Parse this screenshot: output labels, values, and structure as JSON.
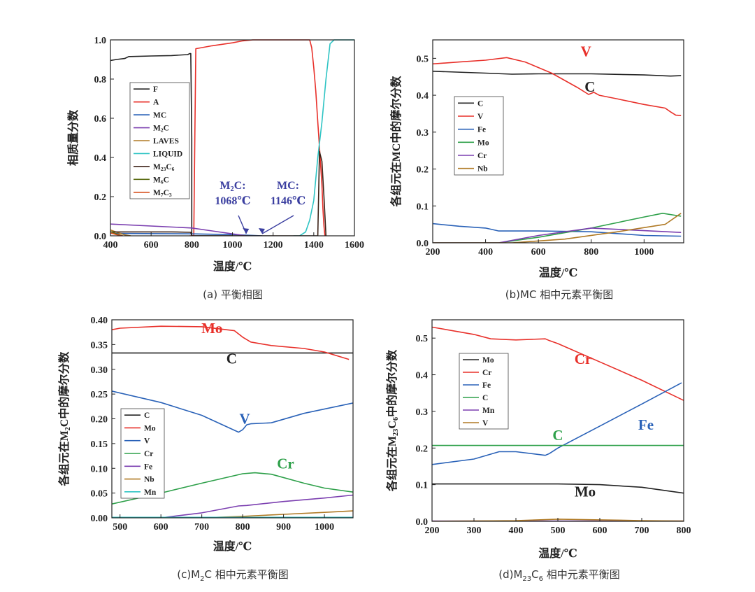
{
  "chart_data": [
    {
      "type": "line",
      "caption": "(a) 平衡相图",
      "xlabel": "温度/℃",
      "ylabel": "相质量分数",
      "xlim": [
        400,
        1600
      ],
      "ylim": [
        0,
        1.0
      ],
      "xticks": [
        400,
        600,
        800,
        1000,
        1200,
        1400,
        1600
      ],
      "yticks": [
        0.0,
        0.2,
        0.4,
        0.6,
        0.8,
        1.0
      ],
      "xtick_labels": [
        "400",
        "600",
        "800",
        "1000",
        "1200",
        "1400",
        "1600"
      ],
      "ytick_labels": [
        "0.0",
        "0.2",
        "0.4",
        "0.6",
        "0.8",
        "1.0"
      ],
      "legend_placement": "center-left",
      "series": [
        {
          "name": "F",
          "color": "#222222",
          "x": [
            400,
            430,
            470,
            490,
            500,
            600,
            700,
            780,
            790,
            795,
            800,
            800,
            900,
            1000
          ],
          "y": [
            0.895,
            0.9,
            0.905,
            0.915,
            0.915,
            0.918,
            0.92,
            0.925,
            0.93,
            0.93,
            0.5,
            0.0,
            0.0,
            0.0
          ]
        },
        {
          "name": "A",
          "color": "#e8302a",
          "x": [
            790,
            810,
            815,
            820,
            900,
            1000,
            1050,
            1100,
            1200,
            1300,
            1380,
            1390,
            1400,
            1410,
            1420,
            1430,
            1440,
            1445,
            1450,
            1455
          ],
          "y": [
            0.0,
            0.0,
            0.5,
            0.955,
            0.97,
            0.985,
            0.995,
            1.0,
            1.0,
            1.0,
            1.0,
            0.96,
            0.86,
            0.74,
            0.58,
            0.42,
            0.26,
            0.14,
            0.05,
            0.0
          ]
        },
        {
          "name": "MC",
          "color": "#2a62b8",
          "x": [
            400,
            800,
            1000,
            1100,
            1146
          ],
          "y": [
            0.012,
            0.01,
            0.006,
            0.002,
            0.0
          ]
        },
        {
          "name": "M₂C",
          "color": "#7b3fb0",
          "x": [
            400,
            800,
            900,
            1000,
            1068
          ],
          "y": [
            0.06,
            0.04,
            0.025,
            0.01,
            0.0
          ]
        },
        {
          "name": "LAVES",
          "color": "#b07a25",
          "x": [
            400,
            440,
            470,
            500
          ],
          "y": [
            0.03,
            0.015,
            0.005,
            0.0
          ]
        },
        {
          "name": "LIQUID",
          "color": "#2ec4c4",
          "x": [
            1300,
            1330,
            1360,
            1380,
            1400,
            1420,
            1440,
            1460,
            1480,
            1500,
            1600
          ],
          "y": [
            0.0,
            0.0,
            0.02,
            0.08,
            0.18,
            0.4,
            0.58,
            0.8,
            0.98,
            1.0,
            1.0
          ]
        },
        {
          "name": "M₂₃C₆",
          "color": "#3d2318",
          "x": [
            400,
            500,
            700,
            795,
            800,
            1420,
            1428,
            1440,
            1450,
            1460
          ],
          "y": [
            0.02,
            0.02,
            0.02,
            0.018,
            0.0,
            0.0,
            0.43,
            0.38,
            0.2,
            0.0
          ]
        },
        {
          "name": "M₆C",
          "color": "#5a6b12",
          "x": [
            400,
            430,
            460
          ],
          "y": [
            0.022,
            0.01,
            0.0
          ]
        },
        {
          "name": "M₇C₃",
          "color": "#d7501e",
          "x": [
            400,
            430,
            460
          ],
          "y": [
            0.015,
            0.006,
            0.0
          ]
        }
      ],
      "annotations": [
        {
          "text_main": "M₂C:",
          "text_sub": "1068℃",
          "x": 1068,
          "y": 0.0
        },
        {
          "text_main": "MC:",
          "text_sub": "1146℃",
          "x": 1146,
          "y": 0.0
        }
      ]
    },
    {
      "type": "line",
      "caption": "(b)MC 相中元素平衡图",
      "xlabel": "温度/℃",
      "ylabel": "各组元在MC中的摩尔分数",
      "xlim": [
        200,
        1150
      ],
      "ylim": [
        0,
        0.55
      ],
      "xticks": [
        200,
        400,
        600,
        800,
        1000
      ],
      "yticks": [
        0.0,
        0.1,
        0.2,
        0.3,
        0.4,
        0.5
      ],
      "xtick_labels": [
        "200",
        "400",
        "600",
        "800",
        "1000"
      ],
      "ytick_labels": [
        "0.0",
        "0.1",
        "0.2",
        "0.3",
        "0.4",
        "0.5"
      ],
      "legend_placement": "center-left",
      "series": [
        {
          "name": "C",
          "color": "#222222",
          "x": [
            200,
            400,
            500,
            600,
            800,
            1000,
            1100,
            1140
          ],
          "y": [
            0.465,
            0.46,
            0.457,
            0.458,
            0.458,
            0.455,
            0.452,
            0.453
          ]
        },
        {
          "name": "V",
          "color": "#e8302a",
          "x": [
            200,
            300,
            400,
            480,
            550,
            650,
            750,
            790,
            810,
            830,
            900,
            1000,
            1080,
            1100,
            1120,
            1140
          ],
          "y": [
            0.485,
            0.49,
            0.495,
            0.502,
            0.49,
            0.46,
            0.42,
            0.402,
            0.408,
            0.4,
            0.39,
            0.375,
            0.365,
            0.355,
            0.346,
            0.345
          ]
        },
        {
          "name": "Fe",
          "color": "#2a62b8",
          "x": [
            200,
            300,
            400,
            450,
            600,
            800,
            1000,
            1140
          ],
          "y": [
            0.052,
            0.045,
            0.04,
            0.032,
            0.032,
            0.03,
            0.02,
            0.018
          ]
        },
        {
          "name": "Mo",
          "color": "#2ea04a",
          "x": [
            200,
            450,
            600,
            800,
            1000,
            1070,
            1140
          ],
          "y": [
            0.0,
            0.0,
            0.015,
            0.04,
            0.07,
            0.08,
            0.072
          ]
        },
        {
          "name": "Cr",
          "color": "#7b3fb0",
          "x": [
            200,
            450,
            600,
            800,
            1000,
            1140
          ],
          "y": [
            0.0,
            0.0,
            0.02,
            0.04,
            0.033,
            0.028
          ]
        },
        {
          "name": "Nb",
          "color": "#b07a25",
          "x": [
            200,
            500,
            700,
            900,
            1080,
            1140
          ],
          "y": [
            0.0,
            0.0,
            0.01,
            0.03,
            0.05,
            0.08
          ]
        }
      ],
      "annotations": [
        {
          "text": "V",
          "color": "#e8302a",
          "x": 780,
          "y": 0.505
        },
        {
          "text": "C",
          "color": "#222222",
          "x": 795,
          "y": 0.41
        }
      ]
    },
    {
      "type": "line",
      "caption_main": "(c)M",
      "caption_sub": "2",
      "caption_rest": "C 相中元素平衡图",
      "xlabel": "温度/℃",
      "ylabel": "各组元在M₂C中的摩尔分数",
      "xlim": [
        480,
        1070
      ],
      "ylim": [
        0,
        0.4
      ],
      "xticks": [
        500,
        600,
        700,
        800,
        900,
        1000
      ],
      "yticks": [
        0.0,
        0.05,
        0.1,
        0.15,
        0.2,
        0.25,
        0.3,
        0.35,
        0.4
      ],
      "xtick_labels": [
        "500",
        "600",
        "700",
        "800",
        "900",
        "1000"
      ],
      "ytick_labels": [
        "0.00",
        "0.05",
        "0.10",
        "0.15",
        "0.20",
        "0.25",
        "0.30",
        "0.35",
        "0.40"
      ],
      "legend_placement": "lower-left",
      "series": [
        {
          "name": "C",
          "color": "#222222",
          "x": [
            480,
            1070
          ],
          "y": [
            0.333,
            0.333
          ]
        },
        {
          "name": "Mo",
          "color": "#e8302a",
          "x": [
            480,
            500,
            600,
            700,
            780,
            800,
            820,
            870,
            950,
            1000,
            1060
          ],
          "y": [
            0.38,
            0.383,
            0.387,
            0.386,
            0.378,
            0.365,
            0.355,
            0.348,
            0.342,
            0.335,
            0.32
          ]
        },
        {
          "name": "V",
          "color": "#2a62b8",
          "x": [
            480,
            600,
            700,
            790,
            800,
            810,
            820,
            870,
            950,
            1070
          ],
          "y": [
            0.256,
            0.233,
            0.207,
            0.173,
            0.178,
            0.188,
            0.19,
            0.192,
            0.211,
            0.232
          ]
        },
        {
          "name": "Cr",
          "color": "#2ea04a",
          "x": [
            480,
            600,
            700,
            800,
            830,
            870,
            950,
            1000,
            1070
          ],
          "y": [
            0.028,
            0.05,
            0.07,
            0.089,
            0.091,
            0.088,
            0.07,
            0.06,
            0.052
          ]
        },
        {
          "name": "Fe",
          "color": "#7b3fb0",
          "x": [
            480,
            600,
            700,
            790,
            810,
            900,
            1000,
            1070
          ],
          "y": [
            0.0,
            0.0,
            0.01,
            0.024,
            0.025,
            0.033,
            0.04,
            0.046
          ]
        },
        {
          "name": "Nb",
          "color": "#b07a25",
          "x": [
            480,
            700,
            800,
            900,
            1000,
            1070
          ],
          "y": [
            0.0,
            0.0,
            0.003,
            0.007,
            0.011,
            0.014
          ]
        },
        {
          "name": "Mn",
          "color": "#2ec4c4",
          "x": [
            480,
            1070
          ],
          "y": [
            0.001,
            0.001
          ]
        }
      ],
      "annotations": [
        {
          "text": "Mo",
          "color": "#e8302a",
          "x": 725,
          "y": 0.373
        },
        {
          "text": "C",
          "color": "#222222",
          "x": 773,
          "y": 0.312
        },
        {
          "text": "V",
          "color": "#2a62b8",
          "x": 805,
          "y": 0.19
        },
        {
          "text": "Cr",
          "color": "#2ea04a",
          "x": 905,
          "y": 0.1
        }
      ]
    },
    {
      "type": "line",
      "caption_main": "(d)M",
      "caption_sub": "23",
      "caption_mid": "C",
      "caption_sub2": "6",
      "caption_rest": " 相中元素平衡图",
      "xlabel": "温度/℃",
      "ylabel": "各组元在M₂₃C₆中的摩尔分数",
      "xlim": [
        200,
        800
      ],
      "ylim": [
        0,
        0.55
      ],
      "xticks": [
        200,
        300,
        400,
        500,
        600,
        700,
        800
      ],
      "yticks": [
        0.0,
        0.1,
        0.2,
        0.3,
        0.4,
        0.5
      ],
      "xtick_labels": [
        "200",
        "300",
        "400",
        "500",
        "600",
        "700",
        "800"
      ],
      "ytick_labels": [
        "0.0",
        "0.1",
        "0.2",
        "0.3",
        "0.4",
        "0.5"
      ],
      "legend_placement": "center-left",
      "series": [
        {
          "name": "Mo",
          "color": "#222222",
          "x": [
            200,
            500,
            600,
            700,
            800
          ],
          "y": [
            0.102,
            0.102,
            0.1,
            0.093,
            0.077
          ]
        },
        {
          "name": "Cr",
          "color": "#e8302a",
          "x": [
            200,
            300,
            340,
            400,
            470,
            480,
            500,
            600,
            700,
            800
          ],
          "y": [
            0.53,
            0.51,
            0.498,
            0.495,
            0.498,
            0.493,
            0.485,
            0.435,
            0.385,
            0.33
          ]
        },
        {
          "name": "Fe",
          "color": "#2a62b8",
          "x": [
            200,
            300,
            360,
            400,
            470,
            480,
            500,
            600,
            700,
            795
          ],
          "y": [
            0.155,
            0.17,
            0.19,
            0.19,
            0.18,
            0.185,
            0.2,
            0.26,
            0.32,
            0.378
          ]
        },
        {
          "name": "C",
          "color": "#2ea04a",
          "x": [
            200,
            800
          ],
          "y": [
            0.207,
            0.207
          ]
        },
        {
          "name": "Mn",
          "color": "#7b3fb0",
          "x": [
            200,
            800
          ],
          "y": [
            0.001,
            0.001
          ]
        },
        {
          "name": "V",
          "color": "#b07a25",
          "x": [
            200,
            400,
            500,
            600,
            700,
            800
          ],
          "y": [
            0.0,
            0.002,
            0.006,
            0.004,
            0.002,
            0.001
          ]
        }
      ],
      "annotations": [
        {
          "text": "Cr",
          "color": "#e8302a",
          "x": 560,
          "y": 0.43
        },
        {
          "text": "C",
          "color": "#2ea04a",
          "x": 500,
          "y": 0.222
        },
        {
          "text": "Fe",
          "color": "#2a62b8",
          "x": 710,
          "y": 0.25
        },
        {
          "text": "Mo",
          "color": "#222222",
          "x": 565,
          "y": 0.068
        }
      ]
    }
  ]
}
